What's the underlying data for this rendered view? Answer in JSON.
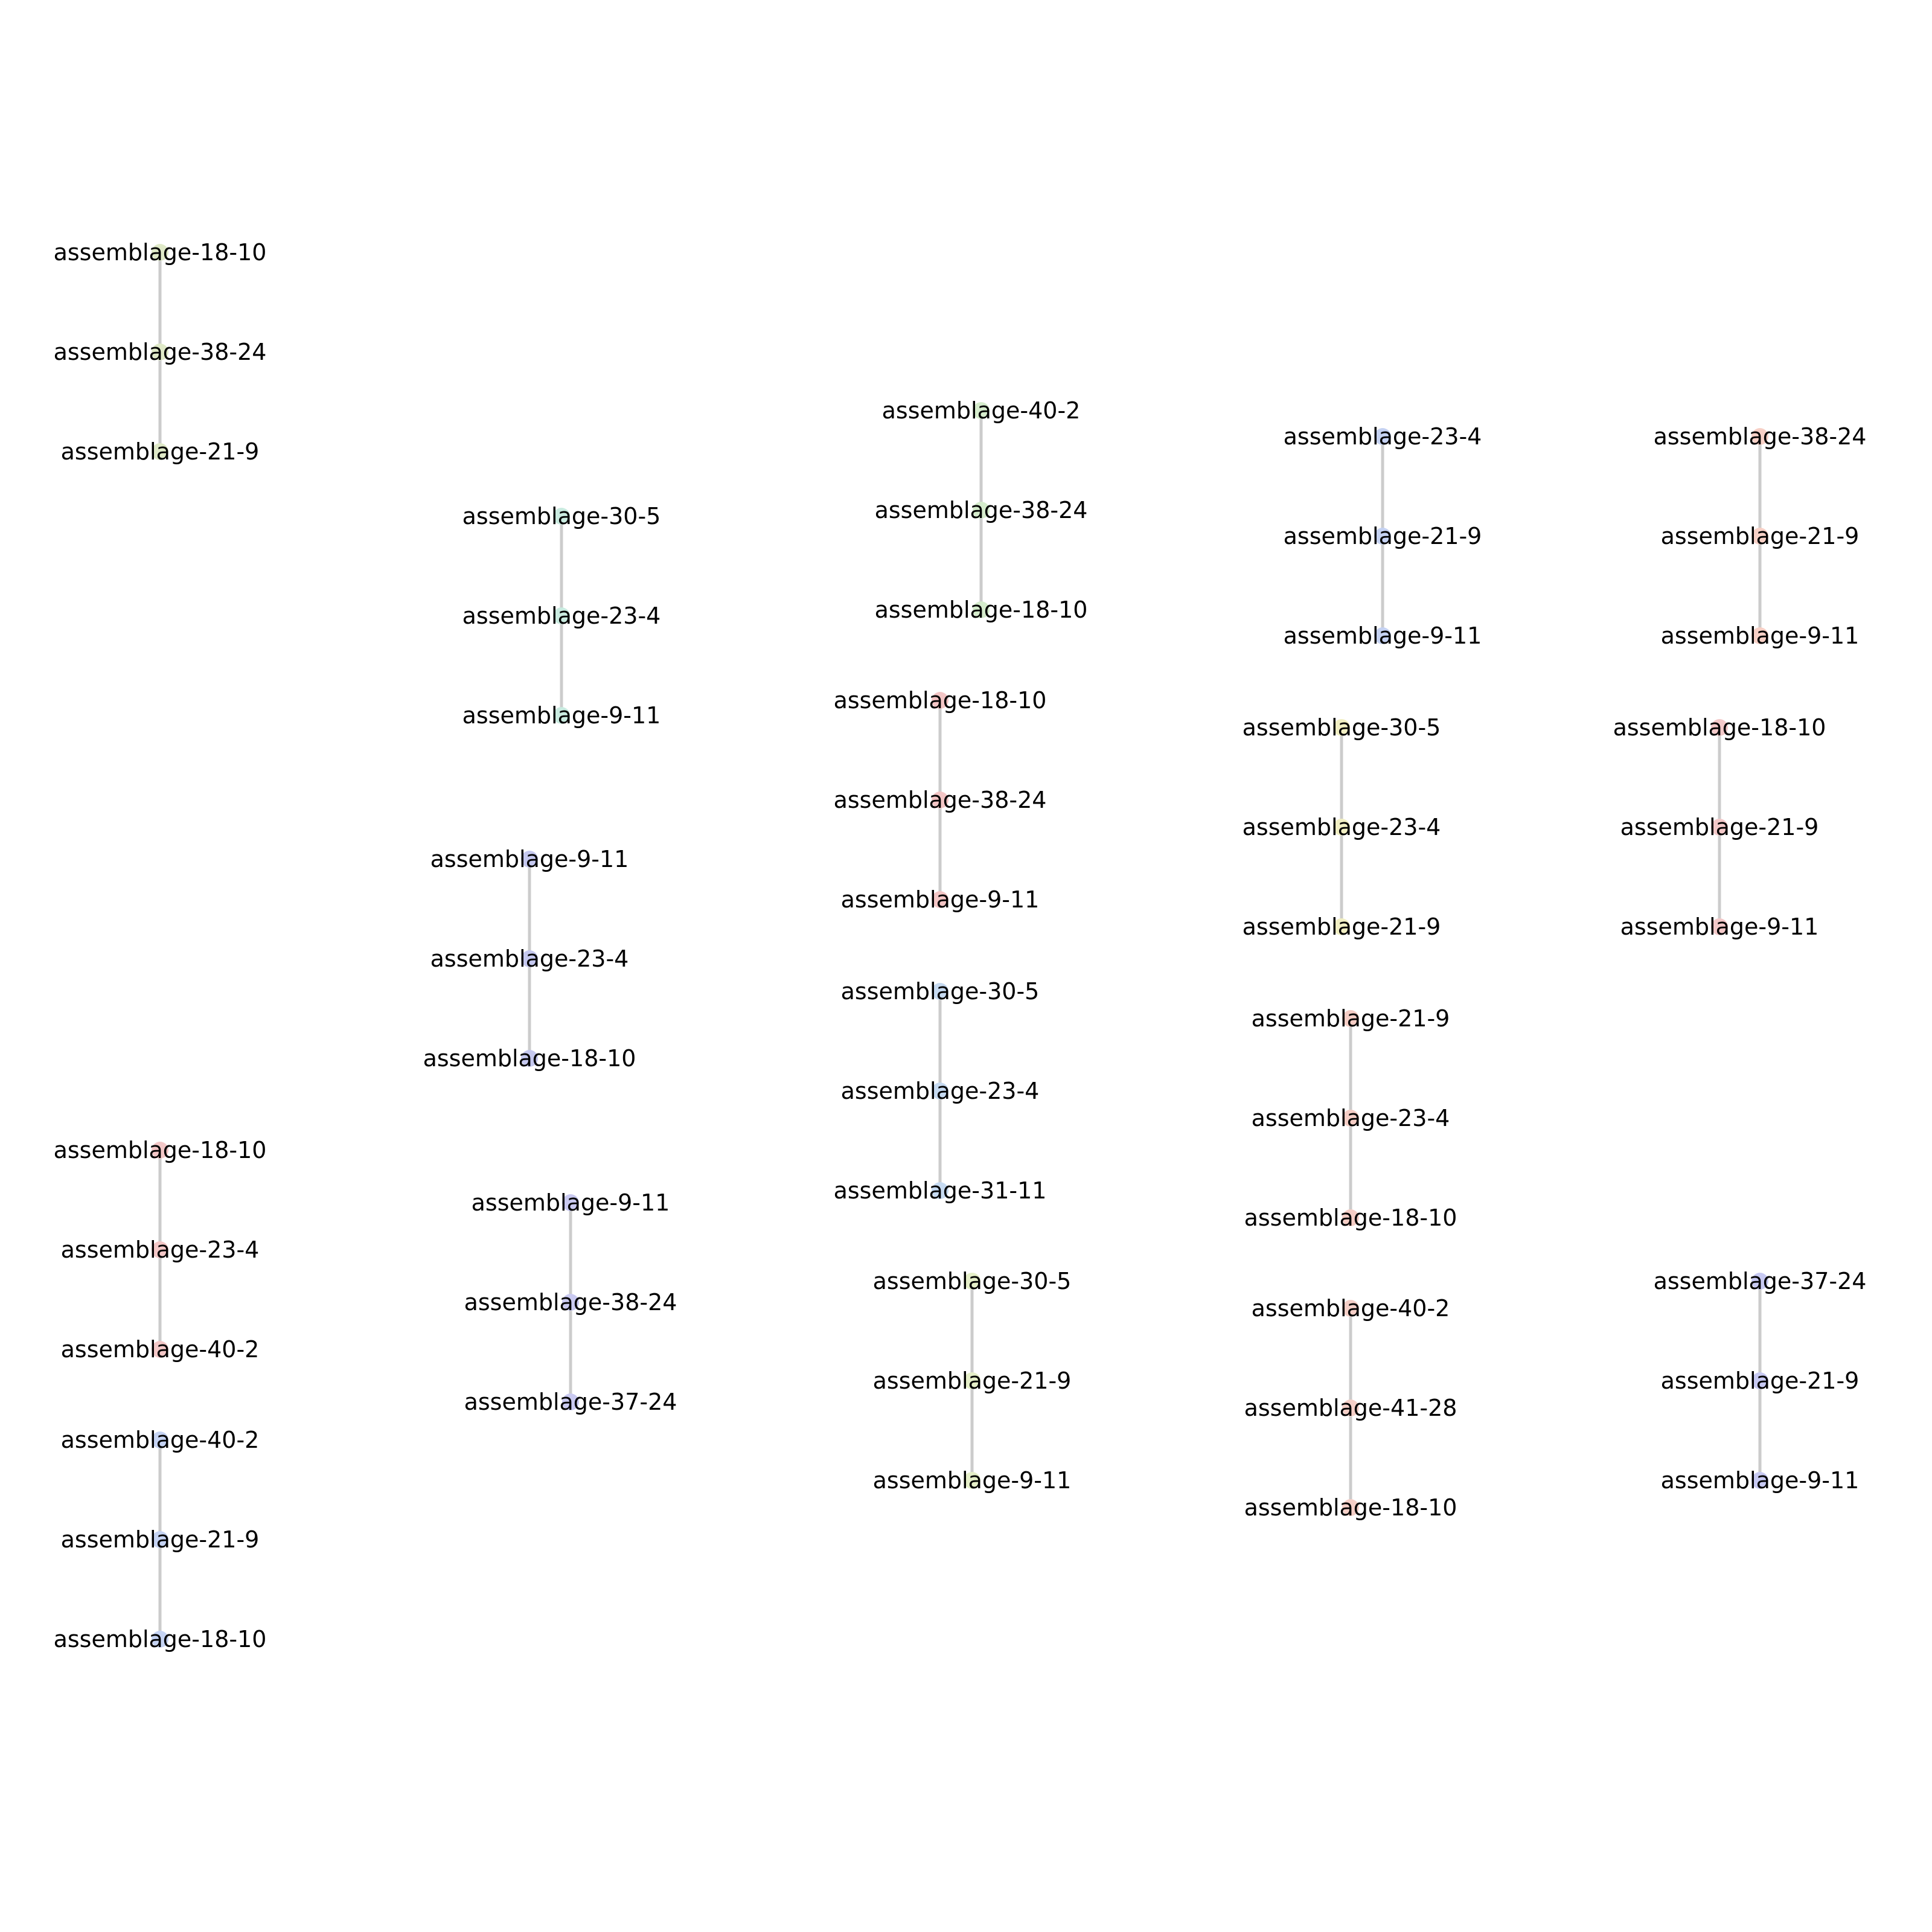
{
  "chains": [
    {
      "color": "#dfe9c7",
      "nodes": [
        "assemblage-18-10",
        "assemblage-38-24",
        "assemblage-21-9"
      ]
    },
    {
      "color": "#c9ebe0",
      "nodes": [
        "assemblage-30-5",
        "assemblage-23-4",
        "assemblage-9-11"
      ]
    },
    {
      "color": "#c5c8ef",
      "nodes": [
        "assemblage-9-11",
        "assemblage-23-4",
        "assemblage-18-10"
      ]
    },
    {
      "color": "#f3c7c7",
      "nodes": [
        "assemblage-18-10",
        "assemblage-23-4",
        "assemblage-40-2"
      ]
    },
    {
      "color": "#c5d3f3",
      "nodes": [
        "assemblage-40-2",
        "assemblage-21-9",
        "assemblage-18-10"
      ]
    },
    {
      "color": "#c9c9f0",
      "nodes": [
        "assemblage-9-11",
        "assemblage-38-24",
        "assemblage-37-24"
      ]
    },
    {
      "color": "#d5eccc",
      "nodes": [
        "assemblage-40-2",
        "assemblage-38-24",
        "assemblage-18-10"
      ]
    },
    {
      "color": "#f3c5c5",
      "nodes": [
        "assemblage-18-10",
        "assemblage-38-24",
        "assemblage-9-11"
      ]
    },
    {
      "color": "#c6daf1",
      "nodes": [
        "assemblage-30-5",
        "assemblage-23-4",
        "assemblage-31-11"
      ]
    },
    {
      "color": "#e5efc8",
      "nodes": [
        "assemblage-30-5",
        "assemblage-21-9",
        "assemblage-9-11"
      ]
    },
    {
      "color": "#c5d2f2",
      "nodes": [
        "assemblage-23-4",
        "assemblage-21-9",
        "assemblage-9-11"
      ]
    },
    {
      "color": "#f1efc3",
      "nodes": [
        "assemblage-30-5",
        "assemblage-23-4",
        "assemblage-21-9"
      ]
    },
    {
      "color": "#f5cdc5",
      "nodes": [
        "assemblage-21-9",
        "assemblage-23-4",
        "assemblage-18-10"
      ]
    },
    {
      "color": "#f5cfc7",
      "nodes": [
        "assemblage-40-2",
        "assemblage-41-28",
        "assemblage-18-10"
      ]
    },
    {
      "color": "#f7d0c6",
      "nodes": [
        "assemblage-38-24",
        "assemblage-21-9",
        "assemblage-9-11"
      ]
    },
    {
      "color": "#f3c9c9",
      "nodes": [
        "assemblage-18-10",
        "assemblage-21-9",
        "assemblage-9-11"
      ]
    },
    {
      "color": "#c7c9f2",
      "nodes": [
        "assemblage-37-24",
        "assemblage-21-9",
        "assemblage-9-11"
      ]
    }
  ]
}
